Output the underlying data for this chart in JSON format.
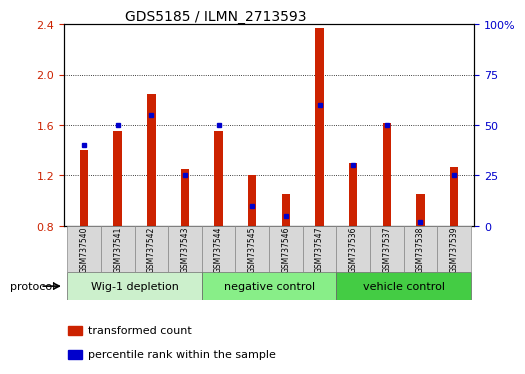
{
  "title": "GDS5185 / ILMN_2713593",
  "samples": [
    "GSM737540",
    "GSM737541",
    "GSM737542",
    "GSM737543",
    "GSM737544",
    "GSM737545",
    "GSM737546",
    "GSM737547",
    "GSM737536",
    "GSM737537",
    "GSM737538",
    "GSM737539"
  ],
  "red_values": [
    1.4,
    1.55,
    1.85,
    1.25,
    1.55,
    1.2,
    1.05,
    2.37,
    1.3,
    1.62,
    1.05,
    1.27
  ],
  "blue_values": [
    40,
    50,
    55,
    25,
    50,
    10,
    5,
    60,
    30,
    50,
    2,
    25
  ],
  "ymin": 0.8,
  "ymax": 2.4,
  "yticks": [
    0.8,
    1.2,
    1.6,
    2.0,
    2.4
  ],
  "right_ytick_vals": [
    0,
    25,
    50,
    75,
    100
  ],
  "right_ytick_labels": [
    "0",
    "25",
    "50",
    "75",
    "100%"
  ],
  "groups": [
    {
      "label": "Wig-1 depletion",
      "start": 0,
      "end": 3,
      "color": "#ccf0cc"
    },
    {
      "label": "negative control",
      "start": 4,
      "end": 7,
      "color": "#99ee99"
    },
    {
      "label": "vehicle control",
      "start": 8,
      "end": 11,
      "color": "#55dd55"
    }
  ],
  "bar_color": "#cc2200",
  "blue_color": "#0000cc",
  "bar_width": 0.25,
  "legend_red": "transformed count",
  "legend_blue": "percentile rank within the sample"
}
